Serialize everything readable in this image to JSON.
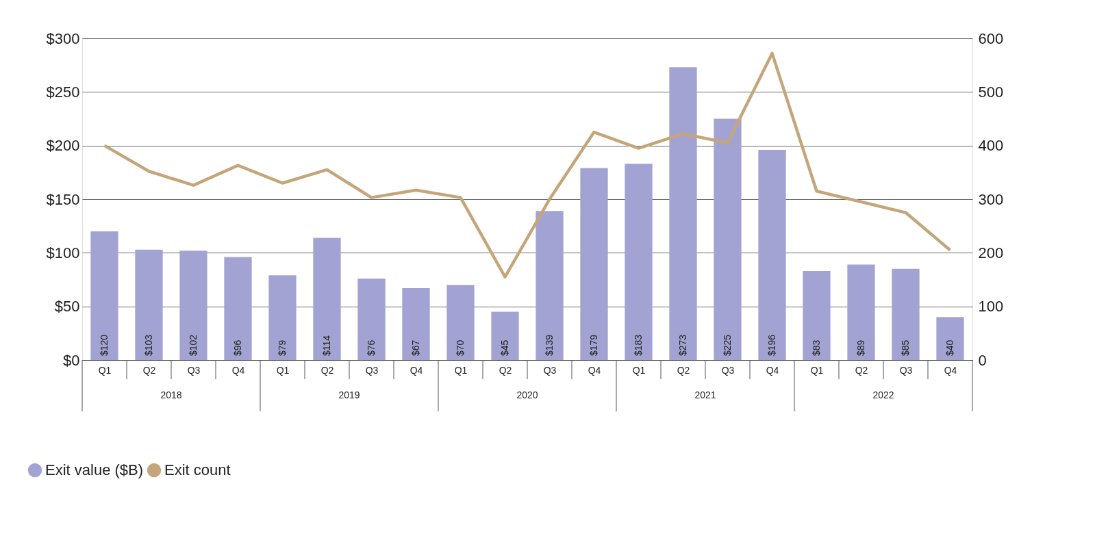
{
  "chart_data": {
    "type": "bar",
    "categories": [
      "Q1",
      "Q2",
      "Q3",
      "Q4",
      "Q1",
      "Q2",
      "Q3",
      "Q4",
      "Q1",
      "Q2",
      "Q3",
      "Q4",
      "Q1",
      "Q2",
      "Q3",
      "Q4",
      "Q1",
      "Q2",
      "Q3",
      "Q4"
    ],
    "series": [
      {
        "name": "Exit value ($B)",
        "color": "#a3a3d3",
        "values": [
          120,
          103,
          102,
          96,
          79,
          114,
          76,
          67,
          70,
          45,
          139,
          179,
          183,
          273,
          225,
          196,
          83,
          89,
          85,
          40
        ],
        "value_labels": [
          "$120",
          "$103",
          "$102",
          "$96",
          "$79",
          "$114",
          "$76",
          "$67",
          "$70",
          "$45",
          "$139",
          "$179",
          "$183",
          "$273",
          "$225",
          "$196",
          "$83",
          "$89",
          "$85",
          "$40"
        ]
      },
      {
        "name": "Exit count",
        "type": "line",
        "axis": "y2",
        "color": "#c4a67a",
        "values": [
          400,
          352,
          326,
          363,
          330,
          355,
          303,
          317,
          303,
          155,
          300,
          425,
          395,
          422,
          405,
          572,
          315,
          295,
          275,
          205
        ]
      }
    ],
    "ylim": [
      0,
      300
    ],
    "yticks": [
      {
        "value": 0,
        "label": "$0"
      },
      {
        "value": 50,
        "label": "$50"
      },
      {
        "value": 100,
        "label": "$100"
      },
      {
        "value": 150,
        "label": "$150"
      },
      {
        "value": 200,
        "label": "$200"
      },
      {
        "value": 250,
        "label": "$250"
      },
      {
        "value": 300,
        "label": "$300"
      }
    ],
    "y2lim": [
      0,
      600
    ],
    "y2ticks": [
      0,
      100,
      200,
      300,
      400,
      500,
      600
    ],
    "annotations": [
      "2018",
      "2019",
      "2020",
      "2021",
      "2022"
    ],
    "grid": "y",
    "legend": "bottom left",
    "line_style": "solid",
    "marker": "none"
  }
}
